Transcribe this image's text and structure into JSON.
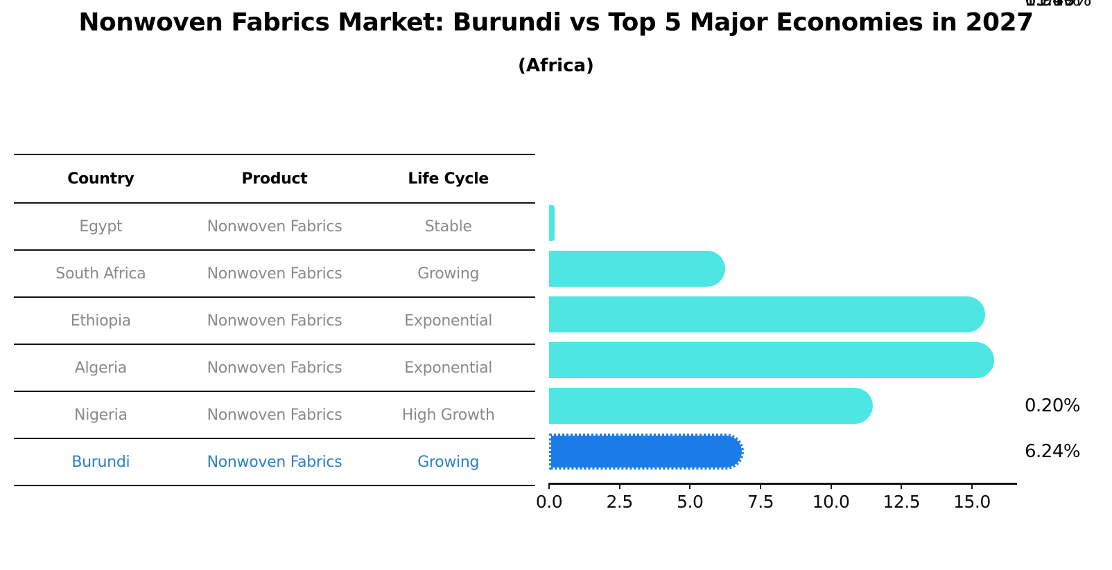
{
  "header": {
    "title": "Nonwoven Fabrics Market: Burundi vs Top 5 Major Economies in 2027",
    "subtitle": "(Africa)"
  },
  "table": {
    "columns": [
      "Country",
      "Product",
      "Life Cycle"
    ],
    "rows": [
      {
        "country": "Egypt",
        "product": "Nonwoven Fabrics",
        "life_cycle": "Stable",
        "highlight": false
      },
      {
        "country": "South Africa",
        "product": "Nonwoven Fabrics",
        "life_cycle": "Growing",
        "highlight": false
      },
      {
        "country": "Ethiopia",
        "product": "Nonwoven Fabrics",
        "life_cycle": "Exponential",
        "highlight": false
      },
      {
        "country": "Algeria",
        "product": "Nonwoven Fabrics",
        "life_cycle": "Exponential",
        "highlight": false
      },
      {
        "country": "Nigeria",
        "product": "Nonwoven Fabrics",
        "life_cycle": "High Growth",
        "highlight": false
      },
      {
        "country": "Burundi",
        "product": "Nonwoven Fabrics",
        "life_cycle": "Growing",
        "highlight": true
      }
    ]
  },
  "chart_data": {
    "type": "bar",
    "orientation": "horizontal",
    "title": "Nonwoven Fabrics Market: Burundi vs Top 5 Major Economies in 2027",
    "subtitle": "(Africa)",
    "categories": [
      "Egypt",
      "South Africa",
      "Ethiopia",
      "Algeria",
      "Nigeria",
      "Burundi"
    ],
    "values": [
      0.2,
      6.24,
      15.46,
      15.8,
      11.49,
      6.91
    ],
    "value_labels": [
      "0.20%",
      "6.24%",
      "15.46%",
      "15.80%",
      "11.49%",
      "6.91%"
    ],
    "x_ticks": [
      0.0,
      2.5,
      5.0,
      7.5,
      10.0,
      12.5,
      15.0
    ],
    "x_tick_labels": [
      "0.0",
      "2.5",
      "5.0",
      "7.5",
      "10.0",
      "12.5",
      "15.0"
    ],
    "xlim": [
      0,
      16.6
    ],
    "grid": false,
    "legend": "none",
    "highlight_index": 5,
    "colors": {
      "bar": "#4de6e2",
      "highlight_bar": "#1b7ce8",
      "highlight_text": "#2c7fc9",
      "row_text": "#8a8a8a",
      "axis": "#141414"
    }
  }
}
